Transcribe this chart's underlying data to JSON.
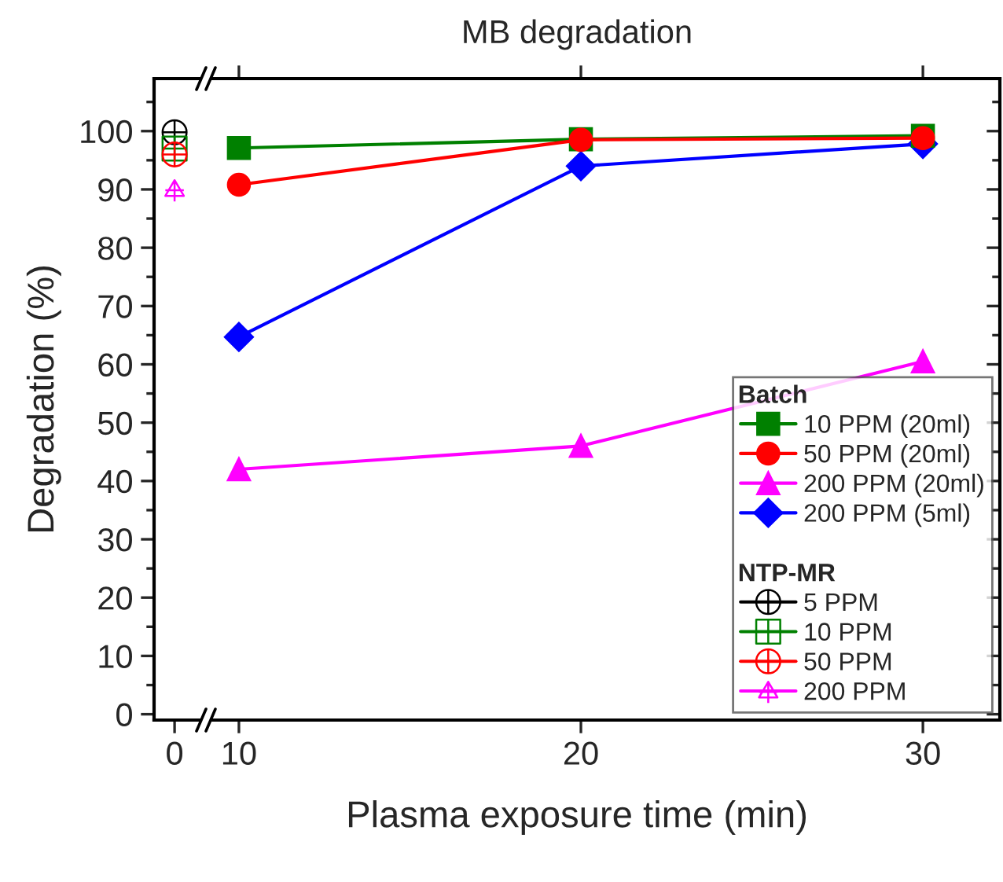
{
  "chart_data": [
    {
      "type": "scatter",
      "legend_title": "NTP-MR",
      "legend": "bottom right",
      "ylabel": "Degradation (%)",
      "categories": [
        "0"
      ],
      "ylim": [
        -1,
        109
      ],
      "yticks": [
        0,
        10,
        20,
        30,
        40,
        50,
        60,
        70,
        80,
        90,
        100
      ],
      "grid": false,
      "series": [
        {
          "name": "5 PPM",
          "color": "#000000",
          "marker": "cross",
          "values": [
            99.8
          ]
        },
        {
          "name": "10 PPM",
          "color": "#008000",
          "marker": "cross",
          "values": [
            97
          ]
        },
        {
          "name": "50 PPM",
          "color": "#ff0000",
          "marker": "cross",
          "values": [
            96
          ]
        },
        {
          "name": "200 PPM",
          "color": "#ff00ff",
          "marker": "cross",
          "values": [
            90
          ]
        }
      ]
    },
    {
      "type": "line",
      "title": "MB degradation",
      "xlabel": "Plasma exposure time (min)",
      "legend_title": "Batch",
      "legend": "bottom right",
      "x": [
        10,
        20,
        30
      ],
      "xlim": [
        9.22,
        32.25
      ],
      "xticks": [
        10,
        20,
        30
      ],
      "ylim": [
        -1,
        109
      ],
      "yticks": [
        0,
        10,
        20,
        30,
        40,
        50,
        60,
        70,
        80,
        90,
        100
      ],
      "tick_labels": "x",
      "grid": false,
      "line_style": "solid",
      "series": [
        {
          "name": "10 PPM (20ml)",
          "color": "#008000",
          "marker": "square",
          "values": [
            97.1,
            98.6,
            99.2
          ]
        },
        {
          "name": "50 PPM (20ml)",
          "color": "#ff0000",
          "marker": "circle",
          "values": [
            90.8,
            98.5,
            98.8
          ]
        },
        {
          "name": "200 PPM (20ml)",
          "color": "#ff00ff",
          "marker": "triangle",
          "values": [
            42,
            46,
            60.5
          ]
        },
        {
          "name": "200 PPM (5ml)",
          "color": "#0000ff",
          "marker": "diamond",
          "values": [
            64.7,
            94,
            97.8
          ]
        }
      ]
    }
  ]
}
